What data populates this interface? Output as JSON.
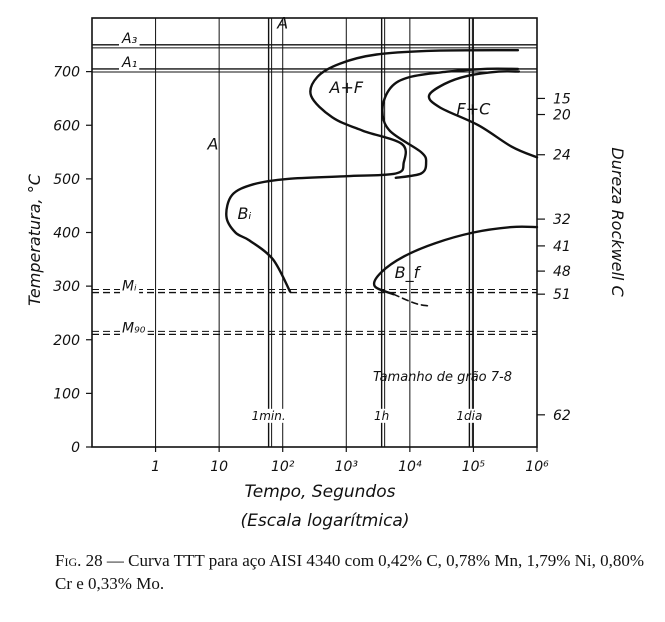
{
  "chart_data": {
    "type": "line",
    "title": "",
    "xlabel": "Tempo, Segundos",
    "xlabel_note": "(Escala logarítmica)",
    "ylabel": "Temperatura, °C",
    "y2label": "Dureza Rockwell C",
    "x_scale": "log",
    "xlim": [
      0.1,
      1000000
    ],
    "ylim": [
      0,
      800
    ],
    "x_ticks": [
      {
        "value": 1,
        "label": "1"
      },
      {
        "value": 10,
        "label": "10"
      },
      {
        "value": 100,
        "label": "10²"
      },
      {
        "value": 1000,
        "label": "10³"
      },
      {
        "value": 10000,
        "label": "10⁴"
      },
      {
        "value": 100000,
        "label": "10⁵"
      },
      {
        "value": 1000000,
        "label": "10⁶"
      }
    ],
    "y_ticks": [
      0,
      100,
      200,
      300,
      400,
      500,
      600,
      700
    ],
    "hardness_ticks": [
      {
        "temp": 650,
        "label": "15"
      },
      {
        "temp": 620,
        "label": "20"
      },
      {
        "temp": 545,
        "label": "24"
      },
      {
        "temp": 425,
        "label": "32"
      },
      {
        "temp": 375,
        "label": "41"
      },
      {
        "temp": 328,
        "label": "48"
      },
      {
        "temp": 285,
        "label": "51"
      },
      {
        "temp": 60,
        "label": "62"
      }
    ],
    "temperature_lines": [
      {
        "label": "A₃",
        "temp": 750,
        "style": "solid"
      },
      {
        "label": "A₁",
        "temp": 705,
        "style": "solid"
      },
      {
        "label": "Mᵢ",
        "temp": 288,
        "style": "dashed"
      },
      {
        "label": "M₉₀",
        "temp": 210,
        "style": "dashed"
      }
    ],
    "time_markers": [
      {
        "label": "1min.",
        "time": 60
      },
      {
        "label": "1h",
        "time": 3600
      },
      {
        "label": "1dia",
        "time": 86400
      }
    ],
    "regions": [
      {
        "label": "A",
        "time": 100,
        "temp": 780
      },
      {
        "label": "A",
        "time": 8,
        "temp": 555
      },
      {
        "label": "A+F",
        "time": 1000,
        "temp": 660
      },
      {
        "label": "F+C",
        "time": 100000,
        "temp": 620
      },
      {
        "label": "Bᵢ",
        "time": 25,
        "temp": 425
      },
      {
        "label": "B_f",
        "time": 9000,
        "temp": 315
      }
    ],
    "annotation": "Tamanho de grão 7-8",
    "series": [
      {
        "role": "start",
        "points": [
          [
            130,
            290
          ],
          [
            70,
            350
          ],
          [
            30,
            385
          ],
          [
            18,
            400
          ],
          [
            13,
            430
          ],
          [
            16,
            470
          ],
          [
            35,
            490
          ],
          [
            120,
            500
          ],
          [
            1000,
            505
          ],
          [
            6000,
            510
          ],
          [
            8000,
            530
          ],
          [
            7500,
            565
          ],
          [
            1800,
            590
          ],
          [
            600,
            615
          ],
          [
            280,
            655
          ],
          [
            350,
            690
          ],
          [
            800,
            715
          ],
          [
            3000,
            732
          ],
          [
            25000,
            739
          ],
          [
            500000,
            740
          ]
        ]
      },
      {
        "role": "end_upper",
        "points": [
          [
            500000,
            705
          ],
          [
            150000,
            705
          ],
          [
            40000,
            700
          ],
          [
            10000,
            690
          ],
          [
            5000,
            670
          ],
          [
            3700,
            630
          ],
          [
            4800,
            590
          ],
          [
            15000,
            550
          ],
          [
            18000,
            530
          ],
          [
            15000,
            510
          ],
          [
            6000,
            502
          ]
        ]
      },
      {
        "role": "end_pearlite",
        "points": [
          [
            520000,
            700
          ],
          [
            250000,
            700
          ],
          [
            80000,
            692
          ],
          [
            35000,
            677
          ],
          [
            20000,
            655
          ],
          [
            30000,
            633
          ],
          [
            120000,
            600
          ],
          [
            400000,
            560
          ],
          [
            1000000,
            540
          ]
        ]
      },
      {
        "role": "end_bainite",
        "points": [
          [
            1000000,
            410
          ],
          [
            400000,
            410
          ],
          [
            100000,
            400
          ],
          [
            25000,
            380
          ],
          [
            8000,
            355
          ],
          [
            3500,
            325
          ],
          [
            2800,
            300
          ],
          [
            5500,
            285
          ]
        ]
      },
      {
        "role": "end_bainite_dashed",
        "style": "dashed",
        "points": [
          [
            5500,
            285
          ],
          [
            12000,
            268
          ],
          [
            20000,
            263
          ]
        ]
      }
    ]
  },
  "caption": {
    "prefix": "Fig. 28",
    "text": "— Curva TTT para aço AISI 4340 com 0,42% C, 0,78% Mn, 1,79% Ni, 0,80% Cr e 0,33% Mo."
  }
}
